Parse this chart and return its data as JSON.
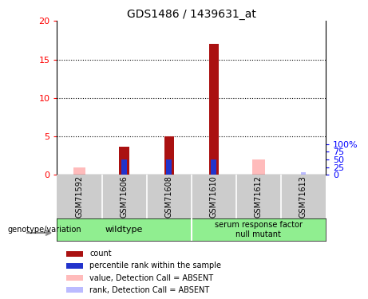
{
  "title": "GDS1486 / 1439631_at",
  "samples": [
    "GSM71592",
    "GSM71606",
    "GSM71608",
    "GSM71610",
    "GSM71612",
    "GSM71613"
  ],
  "count_values": [
    0,
    3.7,
    5.0,
    17.0,
    0,
    0
  ],
  "rank_values": [
    0,
    10,
    10,
    10,
    0,
    0
  ],
  "absent_value": [
    1.0,
    0,
    0,
    0,
    2.0,
    0
  ],
  "absent_rank": [
    0,
    0,
    0,
    5,
    0,
    2
  ],
  "count_color": "#aa1111",
  "rank_color": "#2233cc",
  "absent_value_color": "#ffbbbb",
  "absent_rank_color": "#bbbbff",
  "ylim_left": [
    0,
    20
  ],
  "ylim_right": [
    0,
    100
  ],
  "yticks_left": [
    0,
    5,
    10,
    15,
    20
  ],
  "ytick_labels_left": [
    "0",
    "5",
    "10",
    "15",
    "20"
  ],
  "yticks_right_scaled": [
    0,
    5,
    10,
    15,
    20
  ],
  "ytick_labels_right": [
    "0",
    "25",
    "50",
    "75",
    "100%"
  ],
  "wildtype_count": 3,
  "mutant_count": 3,
  "wildtype_label": "wildtype",
  "mutant_label": "serum response factor\nnull mutant",
  "genotype_label": "genotype/variation",
  "green_color": "#90ee90",
  "gray_bg": "#cccccc",
  "legend_items": [
    {
      "label": "count",
      "color": "#aa1111"
    },
    {
      "label": "percentile rank within the sample",
      "color": "#2233cc"
    },
    {
      "label": "value, Detection Call = ABSENT",
      "color": "#ffbbbb"
    },
    {
      "label": "rank, Detection Call = ABSENT",
      "color": "#bbbbff"
    }
  ]
}
